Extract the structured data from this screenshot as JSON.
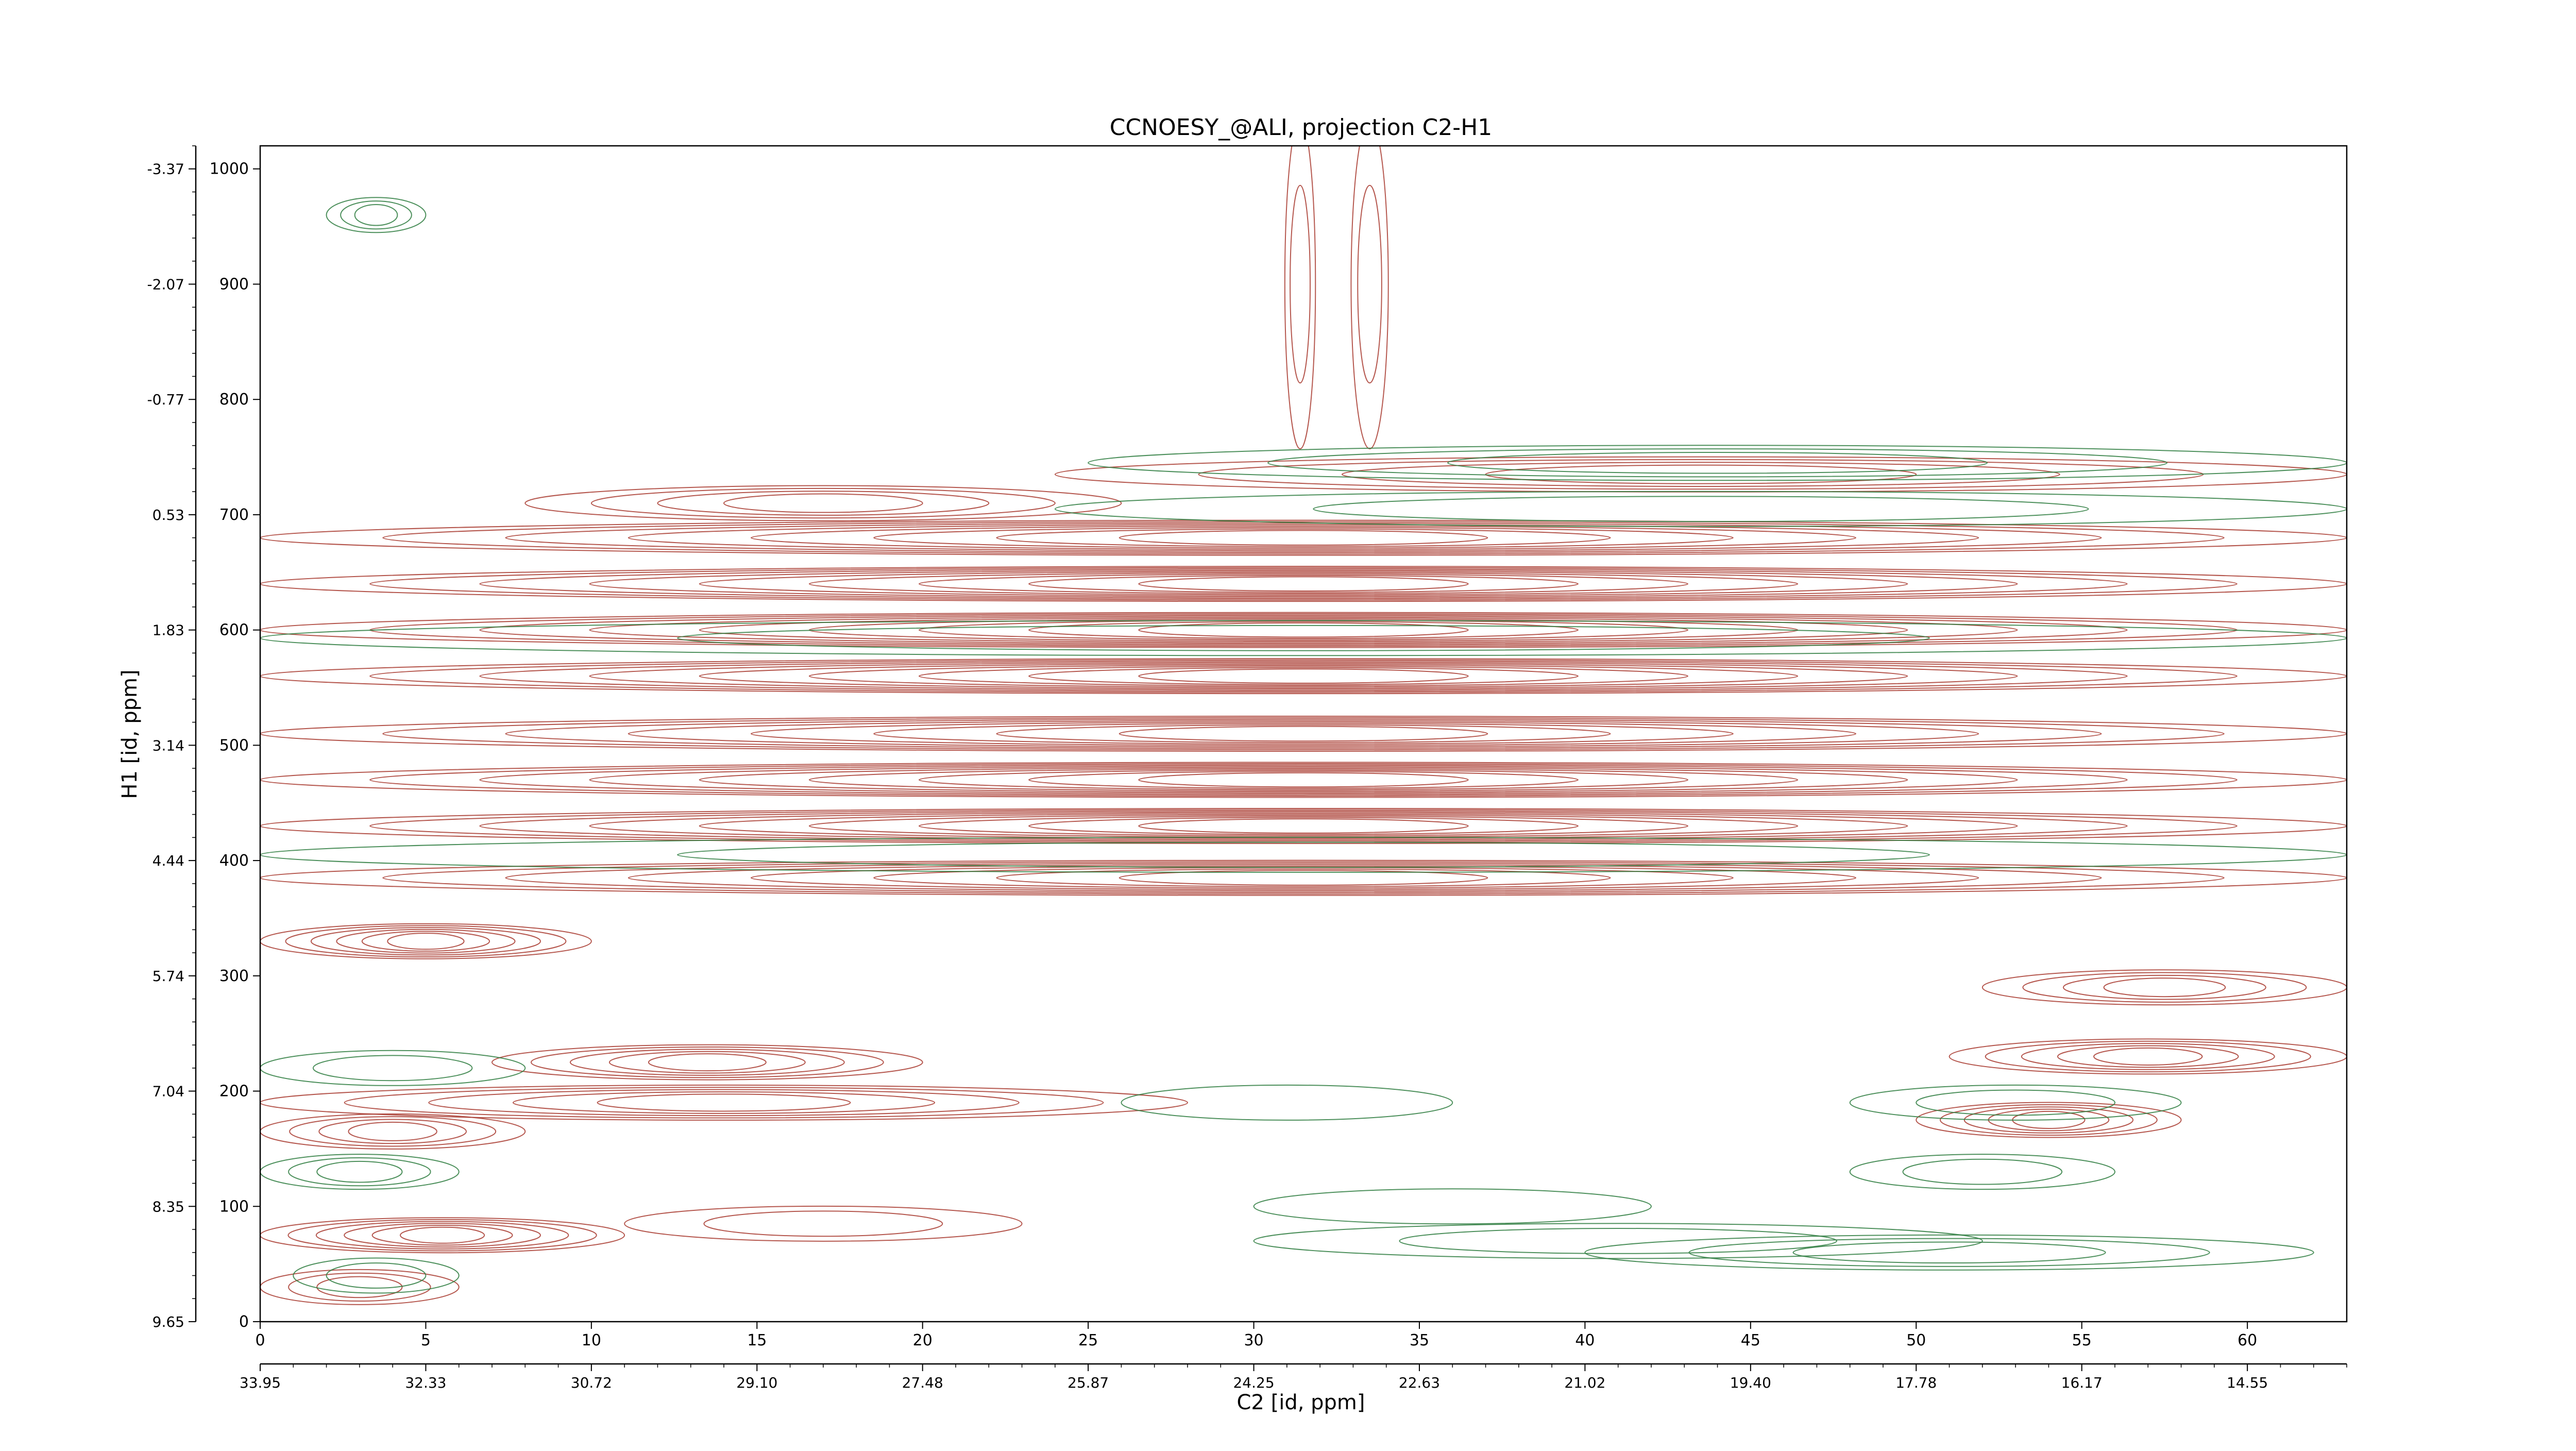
{
  "chart_data": {
    "type": "heatmap",
    "subtype": "nmr-contour-2d",
    "title": "CCNOESY_@ALI, projection C2-H1",
    "xlabel": "C2 [id, ppm]",
    "ylabel": "H1 [id, ppm]",
    "x_index_range": [
      0,
      63
    ],
    "y_index_range": [
      0,
      1020
    ],
    "x_index_ticks": [
      0,
      5,
      10,
      15,
      20,
      25,
      30,
      35,
      40,
      45,
      50,
      55,
      60
    ],
    "x_ppm_ticks": [
      "33.95",
      "32.33",
      "30.72",
      "29.10",
      "27.48",
      "25.87",
      "24.25",
      "22.63",
      "21.02",
      "19.40",
      "17.78",
      "16.17",
      "14.55"
    ],
    "y_index_ticks": [
      0,
      100,
      200,
      300,
      400,
      500,
      600,
      700,
      800,
      900,
      1000
    ],
    "y_ppm_ticks": [
      "9.65",
      "8.35",
      "7.04",
      "5.74",
      "4.44",
      "3.14",
      "1.83",
      "0.53",
      "-0.77",
      "-2.07",
      "-3.37"
    ],
    "grid": false,
    "legend": "none",
    "colors": {
      "positive": "#a83a2f",
      "negative": "#2e7d3f",
      "axis": "#000000"
    },
    "series": [
      {
        "name": "positive",
        "values": [
          {
            "x0": 0,
            "x1": 6,
            "y": 30,
            "n": 3
          },
          {
            "x0": 0,
            "x1": 11,
            "y": 75,
            "n": 6
          },
          {
            "x0": 11,
            "x1": 23,
            "y": 85,
            "n": 2
          },
          {
            "x0": 0,
            "x1": 8,
            "y": 165,
            "n": 4
          },
          {
            "x0": 0,
            "x1": 28,
            "y": 190,
            "n": 5
          },
          {
            "x0": 7,
            "x1": 20,
            "y": 225,
            "n": 5
          },
          {
            "x0": 0,
            "x1": 10,
            "y": 330,
            "n": 6
          },
          {
            "x0": 0,
            "x1": 63,
            "y": 385,
            "n": 8
          },
          {
            "x0": 0,
            "x1": 63,
            "y": 430,
            "n": 9
          },
          {
            "x0": 0,
            "x1": 63,
            "y": 470,
            "n": 9
          },
          {
            "x0": 0,
            "x1": 63,
            "y": 510,
            "n": 8
          },
          {
            "x0": 0,
            "x1": 63,
            "y": 560,
            "n": 9
          },
          {
            "x0": 0,
            "x1": 63,
            "y": 600,
            "n": 9
          },
          {
            "x0": 0,
            "x1": 63,
            "y": 640,
            "n": 9
          },
          {
            "x0": 0,
            "x1": 63,
            "y": 680,
            "n": 8
          },
          {
            "x0": 8,
            "x1": 26,
            "y": 710,
            "n": 4
          },
          {
            "x0": 24,
            "x1": 63,
            "y": 735,
            "n": 4
          },
          {
            "x0": 50,
            "x1": 58,
            "y": 175,
            "n": 5
          },
          {
            "x0": 51,
            "x1": 63,
            "y": 230,
            "n": 5
          },
          {
            "x0": 52,
            "x1": 63,
            "y": 290,
            "n": 4
          },
          {
            "x0": 31,
            "x1": 31.8,
            "y": 900,
            "n": 2
          },
          {
            "x0": 33,
            "x1": 34,
            "y": 900,
            "n": 2
          }
        ]
      },
      {
        "name": "negative",
        "values": [
          {
            "x0": 2,
            "x1": 5,
            "y": 960,
            "n": 3
          },
          {
            "x0": 0,
            "x1": 6,
            "y": 130,
            "n": 3
          },
          {
            "x0": 1,
            "x1": 6,
            "y": 40,
            "n": 2
          },
          {
            "x0": 0,
            "x1": 8,
            "y": 220,
            "n": 2
          },
          {
            "x0": 25,
            "x1": 63,
            "y": 745,
            "n": 3
          },
          {
            "x0": 24,
            "x1": 63,
            "y": 705,
            "n": 2
          },
          {
            "x0": 0,
            "x1": 63,
            "y": 593,
            "n": 2
          },
          {
            "x0": 0,
            "x1": 63,
            "y": 405,
            "n": 2
          },
          {
            "x0": 48,
            "x1": 58,
            "y": 190,
            "n": 2
          },
          {
            "x0": 48,
            "x1": 56,
            "y": 130,
            "n": 2
          },
          {
            "x0": 40,
            "x1": 62,
            "y": 60,
            "n": 3
          },
          {
            "x0": 30,
            "x1": 52,
            "y": 70,
            "n": 2
          },
          {
            "x0": 26,
            "x1": 36,
            "y": 190,
            "n": 1
          },
          {
            "x0": 30,
            "x1": 42,
            "y": 100,
            "n": 1
          }
        ]
      }
    ]
  }
}
